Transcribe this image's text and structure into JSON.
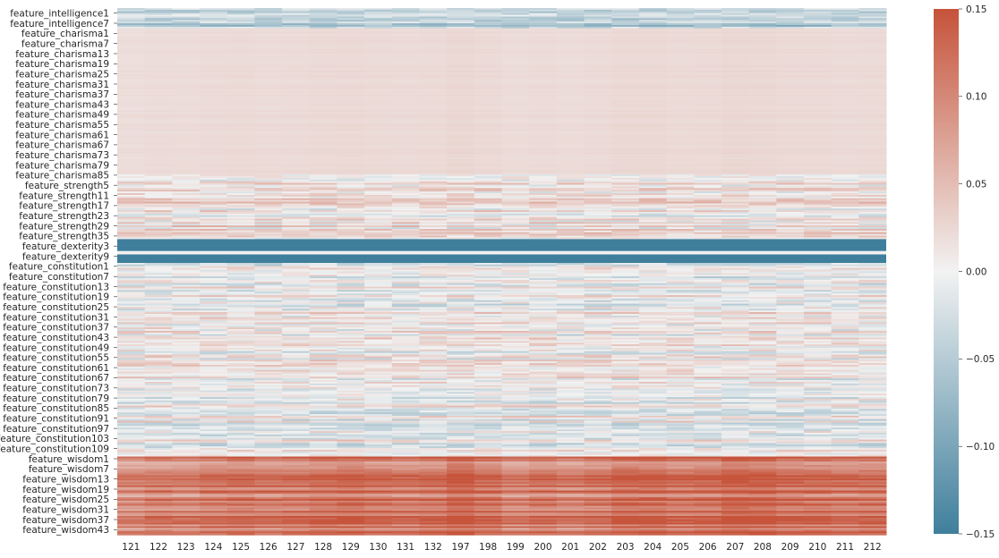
{
  "chart_data": {
    "type": "heatmap",
    "title": "",
    "xlabel": "",
    "ylabel": "",
    "x_tick_labels": [
      "121",
      "122",
      "123",
      "124",
      "125",
      "126",
      "127",
      "128",
      "129",
      "130",
      "131",
      "132",
      "197",
      "198",
      "199",
      "200",
      "201",
      "202",
      "203",
      "204",
      "205",
      "206",
      "207",
      "208",
      "209",
      "210",
      "211",
      "212"
    ],
    "y_tick_labels": [
      "feature_intelligence1",
      "feature_intelligence7",
      "feature_charisma1",
      "feature_charisma7",
      "feature_charisma13",
      "feature_charisma19",
      "feature_charisma25",
      "feature_charisma31",
      "feature_charisma37",
      "feature_charisma43",
      "feature_charisma49",
      "feature_charisma55",
      "feature_charisma61",
      "feature_charisma67",
      "feature_charisma73",
      "feature_charisma79",
      "feature_charisma85",
      "feature_strength5",
      "feature_strength11",
      "feature_strength17",
      "feature_strength23",
      "feature_strength29",
      "feature_strength35",
      "feature_dexterity3",
      "feature_dexterity9",
      "feature_constitution1",
      "feature_constitution7",
      "feature_constitution13",
      "feature_constitution19",
      "feature_constitution25",
      "feature_constitution31",
      "feature_constitution37",
      "feature_constitution43",
      "feature_constitution49",
      "feature_constitution55",
      "feature_constitution61",
      "feature_constitution67",
      "feature_constitution73",
      "feature_constitution79",
      "feature_constitution85",
      "feature_constitution91",
      "feature_constitution97",
      "feature_constitution103",
      "feature_constitution109",
      "feature_wisdom1",
      "feature_wisdom7",
      "feature_wisdom13",
      "feature_wisdom19",
      "feature_wisdom25",
      "feature_wisdom31",
      "feature_wisdom37",
      "feature_wisdom43"
    ],
    "row_groups": [
      {
        "group": "intelligence",
        "row_count": 12,
        "typical_value": -0.04
      },
      {
        "group": "charisma",
        "row_count": 86,
        "typical_value": 0.02
      },
      {
        "group": "strength",
        "row_count": 38,
        "typical_value": 0.01
      },
      {
        "group": "dexterity",
        "row_count": 14,
        "typical_value": -0.15
      },
      {
        "group": "constitution",
        "row_count": 114,
        "typical_value": 0.0
      },
      {
        "group": "wisdom",
        "row_count": 46,
        "typical_value": 0.09
      }
    ],
    "column_modifiers": [
      0.0,
      0.005,
      0.004,
      0.008,
      0.01,
      0.006,
      0.008,
      0.012,
      0.014,
      0.01,
      0.008,
      0.01,
      0.02,
      0.012,
      0.004,
      0.008,
      0.004,
      0.008,
      0.016,
      0.016,
      0.01,
      0.012,
      0.02,
      0.018,
      0.012,
      0.012,
      0.008,
      0.01
    ],
    "colorbar": {
      "vmin": -0.15,
      "vmax": 0.15,
      "ticks": [
        "0.15",
        "0.10",
        "0.05",
        "0.00",
        "−0.05",
        "−0.10",
        "−0.15"
      ],
      "colors": {
        "low": "#3f7f9c",
        "mid": "#f2f2f2",
        "high": "#c6533a"
      }
    }
  }
}
